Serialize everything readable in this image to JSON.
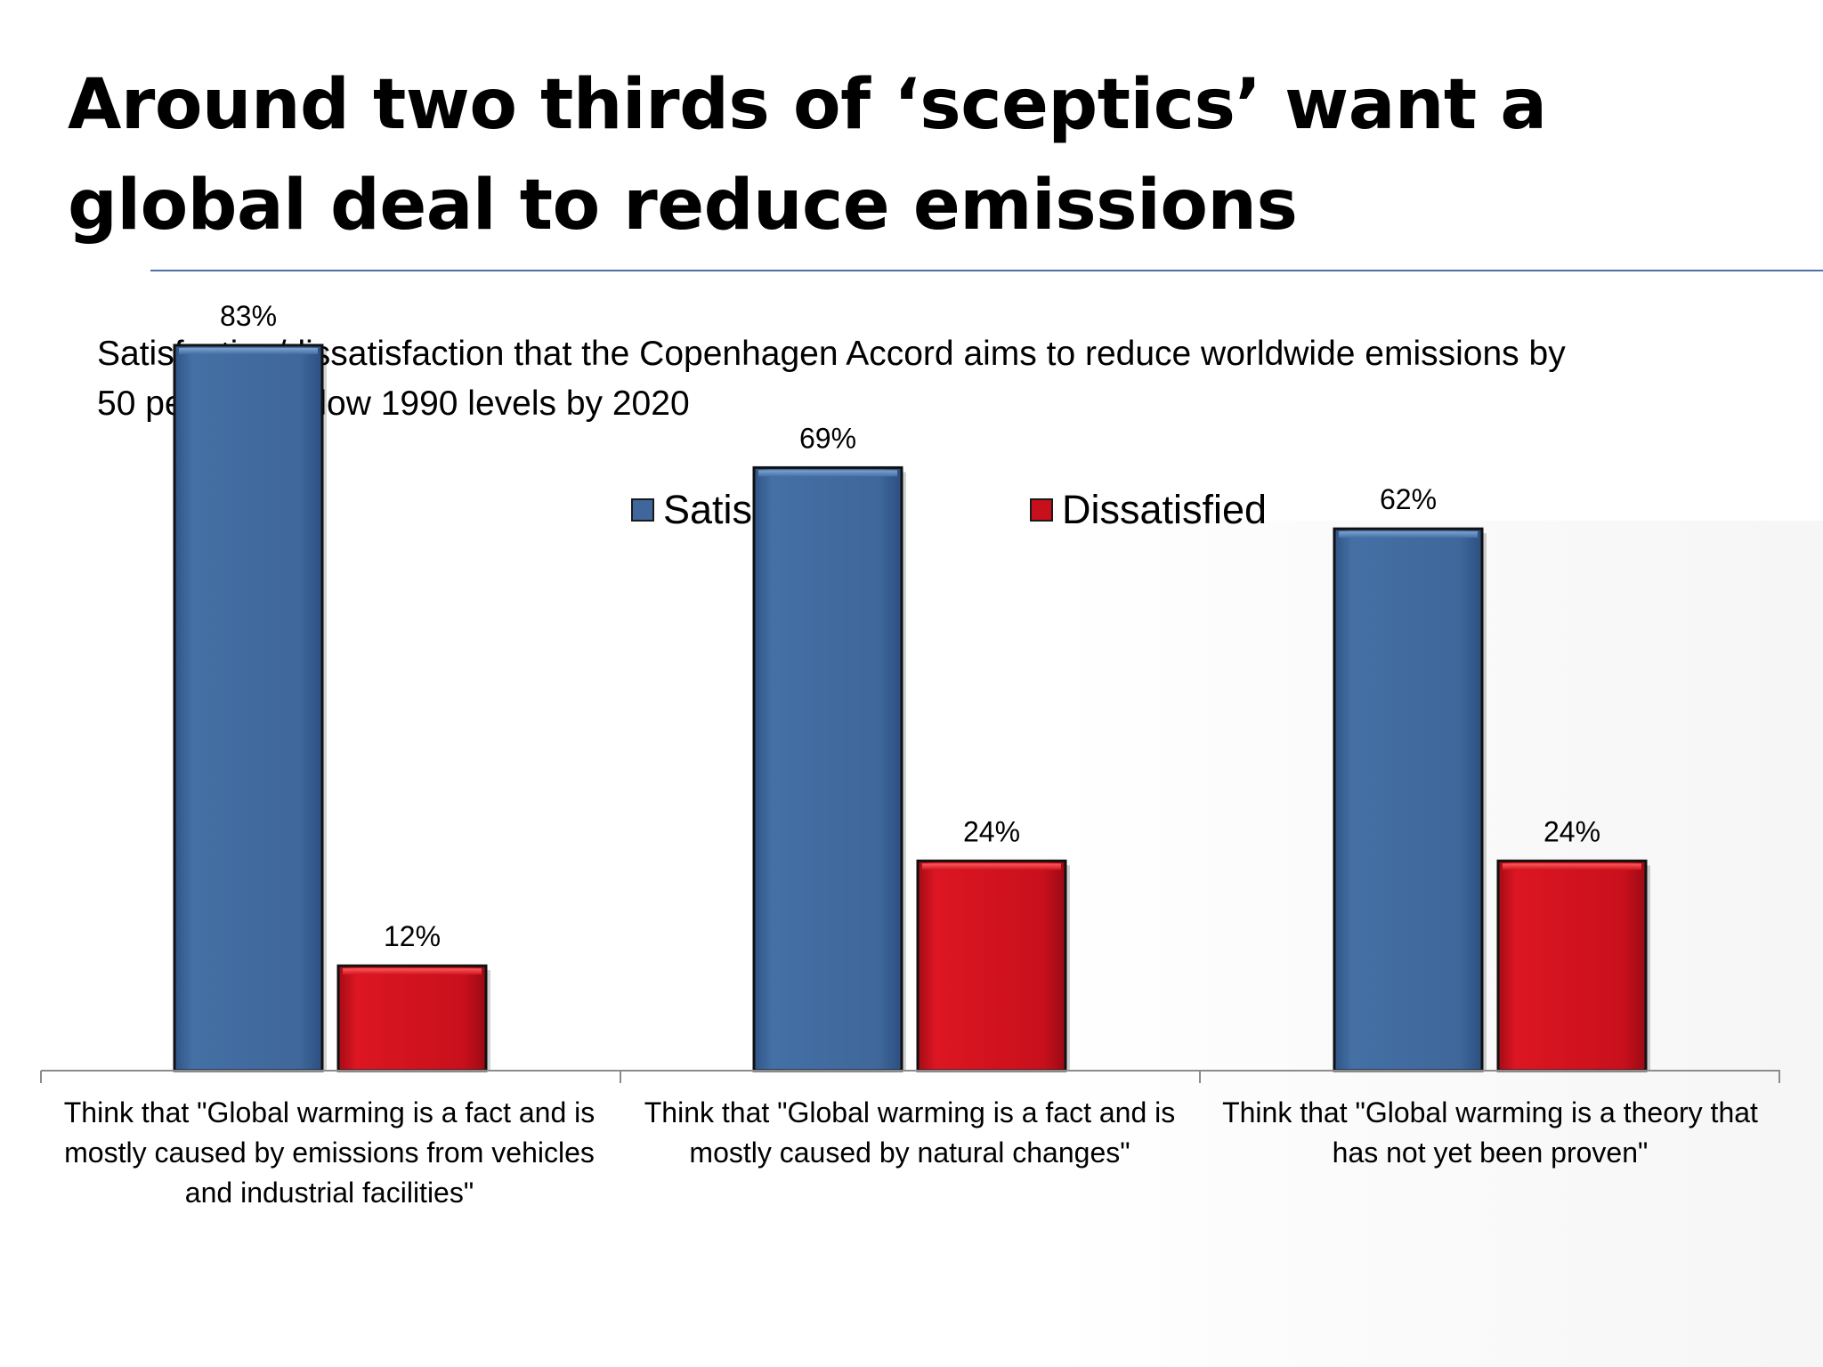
{
  "slide": {
    "title": "Around two thirds of ‘sceptics’ want a global deal to reduce emissions",
    "subtitle": "Satisfaction/dissatisfaction that the Copenhagen Accord aims to reduce worldwide emissions by 50 per cent below 1990 levels by 2020"
  },
  "colors": {
    "satisfied": "#3f679b",
    "dissatisfied": "#c8101c",
    "rule": "#4f6fa8"
  },
  "chart_data": {
    "type": "bar",
    "title": "",
    "xlabel": "",
    "ylabel": "",
    "ylim": [
      0,
      100
    ],
    "grid": false,
    "legend_position": "top",
    "categories": [
      "Think that \"Global warming is a fact and is mostly caused by emissions from vehicles and industrial facilities\"",
      "Think that \"Global warming is a fact and is mostly caused by natural changes\"",
      "Think that \"Global warming is a theory that has not yet been proven\""
    ],
    "series": [
      {
        "name": "Satisfied",
        "values": [
          83,
          69,
          62
        ],
        "labels": [
          "83%",
          "69%",
          "62%"
        ]
      },
      {
        "name": "Dissatisfied",
        "values": [
          12,
          24,
          24
        ],
        "labels": [
          "12%",
          "24%",
          "24%"
        ]
      }
    ]
  }
}
